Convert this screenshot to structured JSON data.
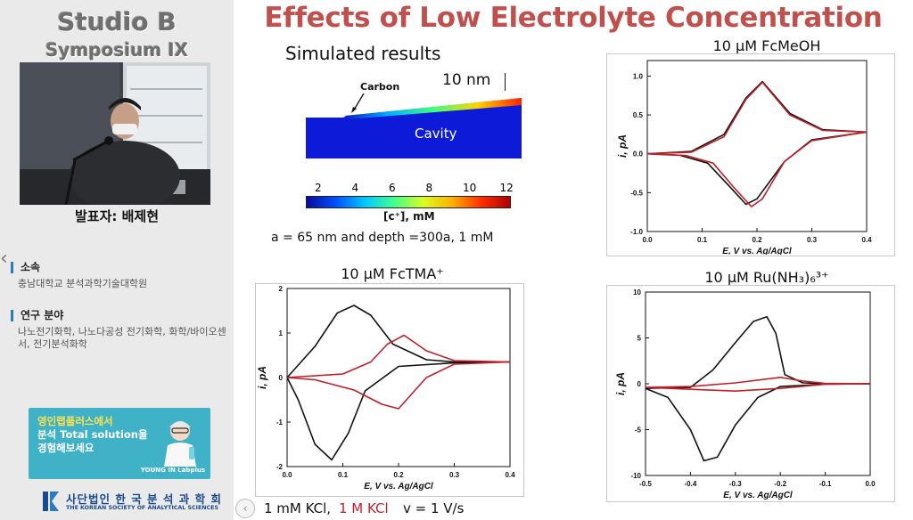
{
  "sidebar": {
    "studio_title": "Studio B",
    "symposium_title": "Symposium IX",
    "presenter": "발표자: 배제현",
    "affiliation_heading": "소속",
    "affiliation": "충남대학교 분석과학기술대학원",
    "research_heading": "연구 분야",
    "research": "나노전기화학, 나노다공성 전기화학, 화학/바이오센서, 전기분석화학",
    "ad_line1": "영인랩플러스에서",
    "ad_line2": "분석 Total solution을",
    "ad_line3": "경험해보세요",
    "ad_brand": "YOUNG IN Labplus",
    "society_ko": "사단법인 한 국 분 석 과 학 회",
    "society_en": "THE KOREAN SOCIETY OF ANALYTICAL SCIENCES"
  },
  "slide": {
    "title": "Effects of Low Electrolyte Concentration",
    "simulated": "Simulated results",
    "carbon": "Carbon",
    "cavity": "Cavity",
    "scale_bar": "10 nm",
    "colorbar_ticks": [
      "2",
      "4",
      "6",
      "8",
      "10",
      "12"
    ],
    "colorbar_label": "[c⁺], mM",
    "sim_params": "a = 65 nm and depth =300a, 1 mM",
    "bottom_black": "1 mM KCl,",
    "bottom_red": "1 M KCl",
    "scan_rate": "v = 1 V/s"
  },
  "chart_data": [
    {
      "type": "line",
      "title": "10 μM FcMeOH",
      "xlabel": "E, V vs. Ag/AgCl",
      "ylabel": "i, pA",
      "xlim": [
        0.0,
        0.4
      ],
      "ylim": [
        -1.0,
        1.2
      ],
      "xticks": [
        "0.0",
        "0.1",
        "0.2",
        "0.3",
        "0.4"
      ],
      "yticks": [
        "-1.0",
        "-0.5",
        "0.0",
        "0.5",
        "1.0"
      ],
      "colors": [
        "#111111",
        "#c0202a"
      ],
      "series": [
        {
          "x": [
            0.0,
            0.08,
            0.14,
            0.18,
            0.21,
            0.26,
            0.32,
            0.4
          ],
          "y": [
            0.0,
            0.03,
            0.25,
            0.72,
            0.93,
            0.52,
            0.31,
            0.28
          ]
        },
        {
          "x": [
            0.4,
            0.3,
            0.25,
            0.2,
            0.18,
            0.15,
            0.11,
            0.06,
            0.0
          ],
          "y": [
            0.28,
            0.18,
            -0.1,
            -0.58,
            -0.65,
            -0.42,
            -0.12,
            -0.02,
            0.0
          ]
        },
        {
          "x": [
            0.0,
            0.08,
            0.14,
            0.18,
            0.21,
            0.26,
            0.32,
            0.4
          ],
          "y": [
            0.0,
            0.02,
            0.22,
            0.7,
            0.92,
            0.5,
            0.3,
            0.28
          ]
        },
        {
          "x": [
            0.4,
            0.3,
            0.25,
            0.21,
            0.19,
            0.16,
            0.12,
            0.07,
            0.0
          ],
          "y": [
            0.28,
            0.17,
            -0.1,
            -0.58,
            -0.68,
            -0.45,
            -0.12,
            -0.02,
            0.0
          ]
        }
      ]
    },
    {
      "type": "line",
      "title": "10 μM FcTMA⁺",
      "xlabel": "E, V vs. Ag/AgCl",
      "ylabel": "i, pA",
      "xlim": [
        0.0,
        0.4
      ],
      "ylim": [
        -2,
        2
      ],
      "xticks": [
        "0.0",
        "0.1",
        "0.2",
        "0.3",
        "0.4"
      ],
      "yticks": [
        "-2",
        "-1",
        "0",
        "1",
        "2"
      ],
      "colors": [
        "#111111",
        "#c0202a"
      ],
      "series": [
        {
          "x": [
            0.0,
            0.05,
            0.09,
            0.12,
            0.15,
            0.19,
            0.25,
            0.3,
            0.4
          ],
          "y": [
            0.0,
            0.7,
            1.45,
            1.62,
            1.4,
            0.75,
            0.4,
            0.35,
            0.35
          ]
        },
        {
          "x": [
            0.4,
            0.3,
            0.2,
            0.14,
            0.11,
            0.08,
            0.05,
            0.02,
            0.0
          ],
          "y": [
            0.35,
            0.33,
            0.25,
            -0.3,
            -1.25,
            -1.85,
            -1.5,
            -0.5,
            0.0
          ]
        },
        {
          "x": [
            0.0,
            0.1,
            0.15,
            0.18,
            0.21,
            0.25,
            0.3,
            0.4
          ],
          "y": [
            0.0,
            0.08,
            0.35,
            0.75,
            0.95,
            0.6,
            0.38,
            0.35
          ]
        },
        {
          "x": [
            0.4,
            0.3,
            0.25,
            0.2,
            0.17,
            0.12,
            0.05,
            0.0
          ],
          "y": [
            0.35,
            0.3,
            0.0,
            -0.7,
            -0.6,
            -0.28,
            -0.05,
            0.0
          ]
        }
      ]
    },
    {
      "type": "line",
      "title": "10 μM Ru(NH₃)₆³⁺",
      "xlabel": "E, V vs. Ag/AgCl",
      "ylabel": "i, pA",
      "xlim": [
        -0.5,
        0.0
      ],
      "ylim": [
        -10,
        10
      ],
      "xticks": [
        "-0.5",
        "-0.4",
        "-0.3",
        "-0.2",
        "-0.1",
        "0.0"
      ],
      "yticks": [
        "-10",
        "-5",
        "0",
        "5",
        "10"
      ],
      "colors": [
        "#111111",
        "#c0202a"
      ],
      "series": [
        {
          "x": [
            -0.5,
            -0.4,
            -0.35,
            -0.3,
            -0.26,
            -0.23,
            -0.21,
            -0.19,
            -0.15,
            -0.1,
            0.0
          ],
          "y": [
            -0.5,
            -0.4,
            1.5,
            4.5,
            6.8,
            7.3,
            5.5,
            1.0,
            0.1,
            0.0,
            0.0
          ]
        },
        {
          "x": [
            0.0,
            -0.1,
            -0.2,
            -0.25,
            -0.3,
            -0.34,
            -0.37,
            -0.4,
            -0.45,
            -0.5
          ],
          "y": [
            0.0,
            -0.05,
            -0.3,
            -1.5,
            -4.5,
            -8.0,
            -8.4,
            -5.0,
            -1.5,
            -0.5
          ]
        },
        {
          "x": [
            -0.5,
            -0.4,
            -0.3,
            -0.2,
            -0.15,
            -0.1,
            0.0
          ],
          "y": [
            -0.4,
            -0.3,
            0.1,
            0.7,
            0.3,
            0.05,
            0.0
          ]
        },
        {
          "x": [
            0.0,
            -0.1,
            -0.2,
            -0.3,
            -0.4,
            -0.5
          ],
          "y": [
            0.0,
            -0.05,
            -0.5,
            -0.8,
            -0.6,
            -0.4
          ]
        }
      ]
    }
  ]
}
